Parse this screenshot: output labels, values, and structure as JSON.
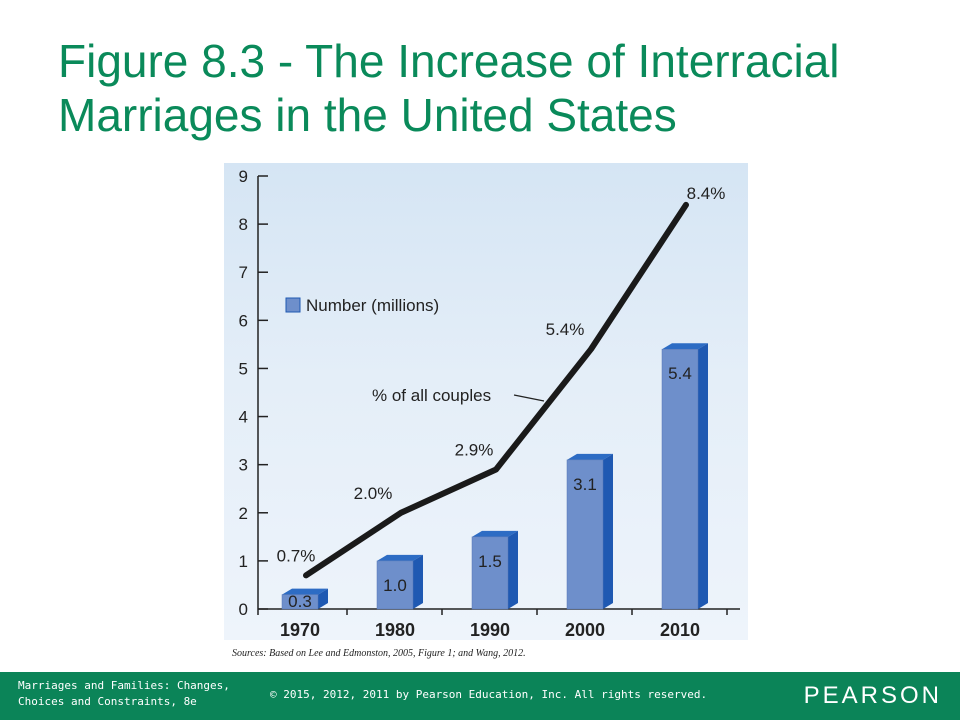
{
  "slide": {
    "title": "Figure 8.3 - The Increase of Interracial Marriages in the United States",
    "sources": "Sources: Based on Lee and Edmonston, 2005, Figure 1; and Wang, 2012."
  },
  "footer": {
    "course": "Marriages and Families: Changes, Choices and Constraints, 8e",
    "copyright": "© 2015, 2012, 2011 by Pearson Education, Inc. All rights reserved.",
    "logo": "PEARSON"
  },
  "colors": {
    "title": "#0a8a5a",
    "footer_bg": "#0b8458",
    "bar_front": "#6e8fcb",
    "bar_side": "#1f59b2",
    "bar_top": "#2d6cc4",
    "line": "#1a1a1a"
  },
  "chart_data": {
    "type": "bar",
    "categories": [
      "1970",
      "1980",
      "1990",
      "2000",
      "2010"
    ],
    "ylim": [
      0,
      9
    ],
    "yticks": [
      0,
      1,
      2,
      3,
      4,
      5,
      6,
      7,
      8,
      9
    ],
    "grid": false,
    "legend": {
      "position": "upper-left"
    },
    "series": [
      {
        "name": "Number (millions)",
        "kind": "bar",
        "values": [
          0.3,
          1.0,
          1.5,
          3.1,
          5.4
        ],
        "labels": [
          "0.3",
          "1.0",
          "1.5",
          "3.1",
          "5.4"
        ]
      },
      {
        "name": "% of all couples",
        "kind": "line",
        "values": [
          0.7,
          2.0,
          2.9,
          5.4,
          8.4
        ],
        "labels": [
          "0.7%",
          "2.0%",
          "2.9%",
          "5.4%",
          "8.4%"
        ]
      }
    ]
  }
}
